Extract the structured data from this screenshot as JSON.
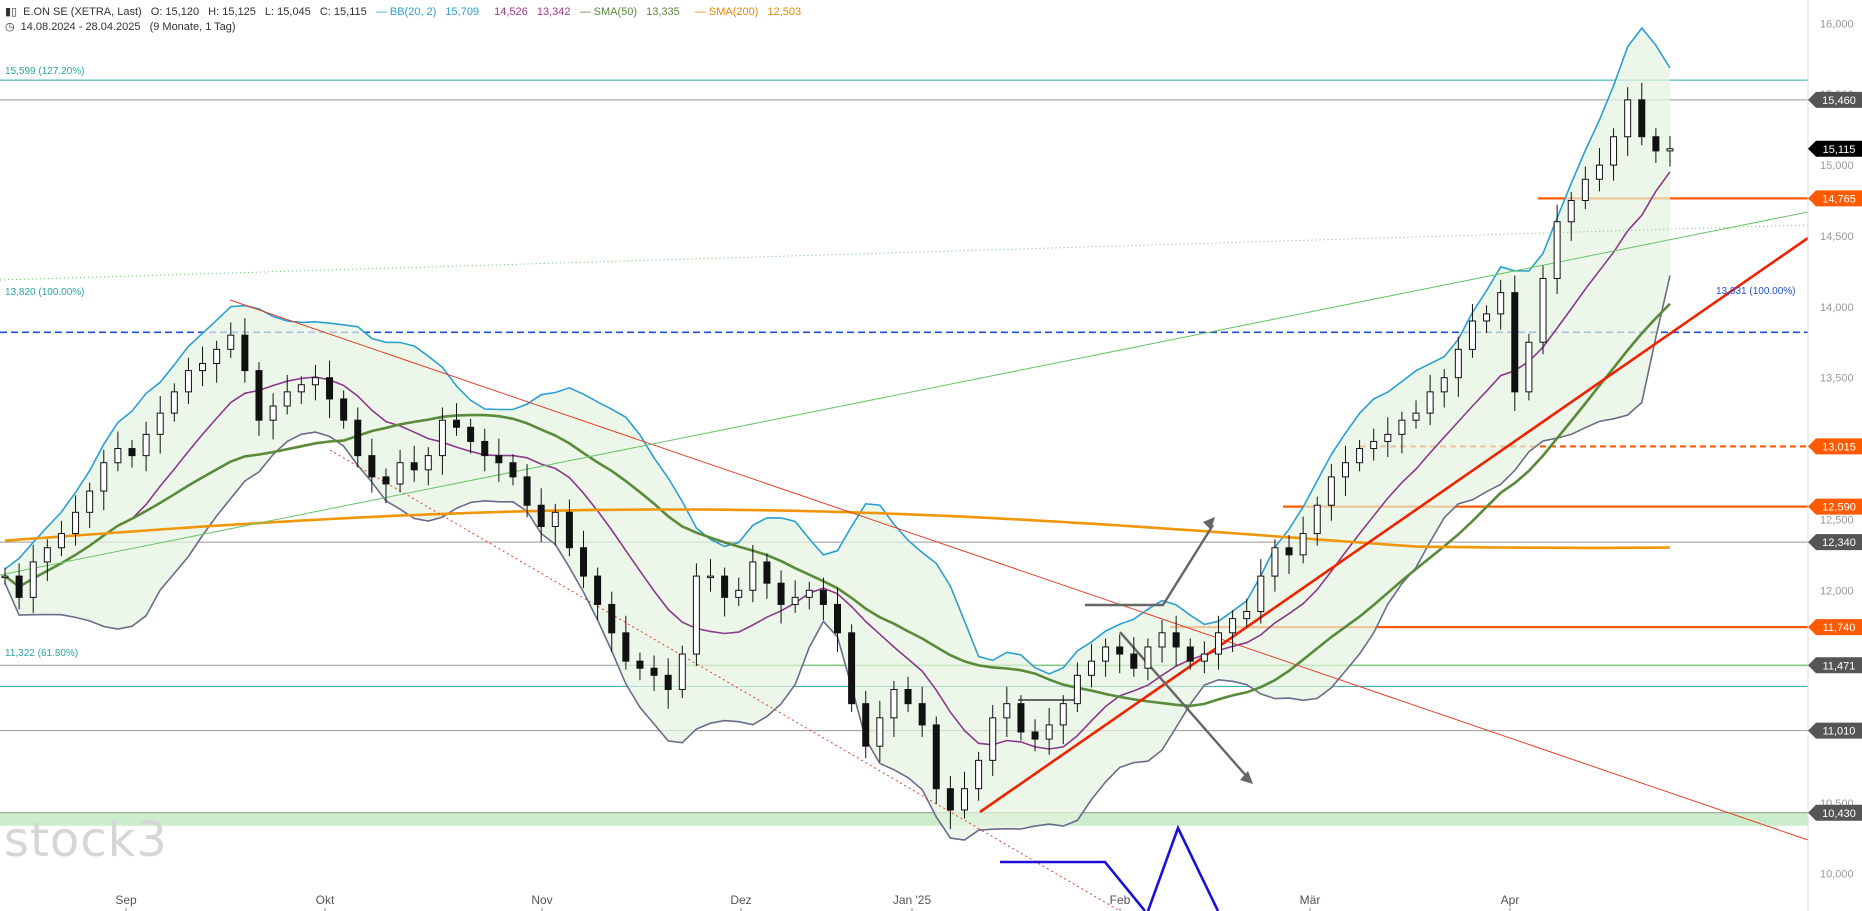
{
  "header": {
    "symbol": "E.ON SE (XETRA, Last)",
    "ohlc": {
      "o": "O: 15,120",
      "h": "H: 15,125",
      "l": "L: 15,045",
      "c": "C: 15,115"
    },
    "bb": {
      "label": "BB(20, 2)",
      "upper": "15,709",
      "mid": "14,526",
      "lower": "13,342"
    },
    "sma50": {
      "label": "SMA(50)",
      "value": "13,335"
    },
    "sma200": {
      "label": "SMA(200)",
      "value": "12,503"
    },
    "range": "14.08.2024 - 28.04.2025",
    "period": "(9 Monate, 1 Tag)"
  },
  "watermark": "stock3",
  "fib_labels": {
    "top": "15,599 (127.20%)",
    "mid": "13,820 (100.00%)",
    "low": "11,322 (61.80%)",
    "right": "13,831 (100.00%)"
  },
  "chart_data": {
    "type": "candlestick",
    "x_labels": [
      "Sep",
      "Okt",
      "Nov",
      "Dez",
      "Jan '25",
      "Feb",
      "Mär",
      "Apr"
    ],
    "y_ticks": [
      "10,000",
      "10,500",
      "11,000",
      "11,500",
      "12,000",
      "12,500",
      "13,000",
      "13,500",
      "14,000",
      "14,500",
      "15,000",
      "15,500",
      "16,000"
    ],
    "ylim": [
      9.85,
      16.2
    ],
    "level_tags": [
      {
        "value": 15.46,
        "label": "15,460",
        "color": "#555555"
      },
      {
        "value": 15.115,
        "label": "15,115",
        "color": "#000000"
      },
      {
        "value": 14.765,
        "label": "14,765",
        "color": "#ff5a00"
      },
      {
        "value": 13.015,
        "label": "13,015",
        "color": "#ff5a00"
      },
      {
        "value": 12.59,
        "label": "12,590",
        "color": "#ff5a00"
      },
      {
        "value": 12.34,
        "label": "12,340",
        "color": "#555555"
      },
      {
        "value": 11.74,
        "label": "11,740",
        "color": "#ff5a00"
      },
      {
        "value": 11.471,
        "label": "11,471",
        "color": "#555555"
      },
      {
        "value": 11.01,
        "label": "11,010",
        "color": "#555555"
      },
      {
        "value": 10.43,
        "label": "10,430",
        "color": "#555555"
      }
    ],
    "close_series": [
      12.1,
      11.95,
      12.2,
      12.3,
      12.4,
      12.55,
      12.7,
      12.9,
      13.0,
      12.95,
      13.1,
      13.25,
      13.4,
      13.55,
      13.6,
      13.7,
      13.8,
      13.55,
      13.2,
      13.3,
      13.4,
      13.45,
      13.5,
      13.35,
      13.2,
      12.95,
      12.8,
      12.75,
      12.9,
      12.85,
      12.95,
      13.2,
      13.15,
      13.05,
      12.95,
      12.9,
      12.8,
      12.6,
      12.45,
      12.55,
      12.3,
      12.1,
      11.9,
      11.7,
      11.5,
      11.45,
      11.4,
      11.3,
      11.55,
      12.1,
      12.1,
      11.95,
      12.0,
      12.2,
      12.05,
      11.9,
      11.95,
      12.0,
      11.9,
      11.7,
      11.2,
      10.9,
      11.1,
      11.3,
      11.2,
      11.05,
      10.6,
      10.45,
      10.6,
      10.8,
      11.1,
      11.2,
      11.0,
      10.95,
      11.05,
      11.2,
      11.4,
      11.5,
      11.6,
      11.55,
      11.45,
      11.6,
      11.7,
      11.6,
      11.5,
      11.55,
      11.7,
      11.8,
      11.85,
      12.1,
      12.3,
      12.25,
      12.4,
      12.6,
      12.8,
      12.9,
      13.0,
      13.05,
      13.1,
      13.2,
      13.25,
      13.4,
      13.5,
      13.7,
      13.9,
      13.95,
      14.1,
      13.4,
      13.75,
      14.2,
      14.6,
      14.75,
      14.9,
      15.0,
      15.2,
      15.46,
      15.2,
      15.1,
      15.115
    ]
  }
}
